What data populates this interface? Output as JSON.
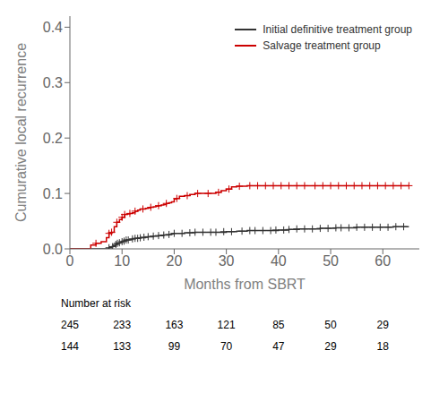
{
  "chart_data": {
    "type": "line",
    "line_style": "step",
    "xlabel": "Months from SBRT",
    "ylabel": "Cumurative local recurrence",
    "xlim": [
      0,
      67
    ],
    "ylim": [
      0,
      0.42
    ],
    "xticks": [
      0,
      10,
      20,
      30,
      40,
      50,
      60
    ],
    "yticks": [
      {
        "value": 0.0,
        "label": "0.0"
      },
      0.1,
      0.2,
      0.3,
      0.4
    ],
    "grid": false,
    "legend": "upper right",
    "series": [
      {
        "name": "Initial definitive treatment group",
        "color": "#333333",
        "marker": "+",
        "x": [
          0,
          7.2,
          7.5,
          8.0,
          8.3,
          8.8,
          9.0,
          9.2,
          9.5,
          9.8,
          10.0,
          10.3,
          10.5,
          10.8,
          11.0,
          11.5,
          12.0,
          12.5,
          13.0,
          13.5,
          14.0,
          14.5,
          15.0,
          15.5,
          16.0,
          16.5,
          17.0,
          17.5,
          18.0,
          18.5,
          19.0,
          19.5,
          20.0,
          20.5,
          21.0,
          22.0,
          23.0,
          24.0,
          25.0,
          26.0,
          27.0,
          28.0,
          29.0,
          30.0,
          31.0,
          32.0,
          33.0,
          34.0,
          35.0,
          36.0,
          37.0,
          38.0,
          39.0,
          40.0,
          41.0,
          42.0,
          43.0,
          44.0,
          45.0,
          46.0,
          47.0,
          48.0,
          49.0,
          50.0,
          51.0,
          52.0,
          53.0,
          54.0,
          55.0,
          56.0,
          57.0,
          58.0,
          59.0,
          60.0,
          61.0,
          62.0,
          63.0,
          64.0,
          65.0
        ],
        "values": [
          0,
          0,
          0.002,
          0.004,
          0.006,
          0.008,
          0.009,
          0.01,
          0.011,
          0.012,
          0.013,
          0.014,
          0.015,
          0.016,
          0.016,
          0.017,
          0.018,
          0.019,
          0.019,
          0.02,
          0.02,
          0.021,
          0.022,
          0.022,
          0.023,
          0.023,
          0.024,
          0.024,
          0.025,
          0.025,
          0.026,
          0.027,
          0.028,
          0.028,
          0.028,
          0.029,
          0.029,
          0.03,
          0.03,
          0.03,
          0.03,
          0.03,
          0.03,
          0.031,
          0.031,
          0.032,
          0.032,
          0.033,
          0.033,
          0.033,
          0.033,
          0.033,
          0.033,
          0.034,
          0.034,
          0.035,
          0.035,
          0.036,
          0.036,
          0.036,
          0.036,
          0.037,
          0.037,
          0.037,
          0.038,
          0.038,
          0.038,
          0.038,
          0.039,
          0.039,
          0.039,
          0.039,
          0.039,
          0.039,
          0.039,
          0.04,
          0.04,
          0.04,
          0.04
        ],
        "censored": {
          "x": [
            7.5,
            8.2,
            8.8,
            9.1,
            9.5,
            10.0,
            10.4,
            10.8,
            11.2,
            12.0,
            12.5,
            13.0,
            13.5,
            14.2,
            15.0,
            16.0,
            17.0,
            18.0,
            19.0,
            20.0,
            21.5,
            23.0,
            24.0,
            25.5,
            27.0,
            28.0,
            29.5,
            31.0,
            33.0,
            34.5,
            35.5,
            37.0,
            38.5,
            39.5,
            41.0,
            42.0,
            43.5,
            45.0,
            46.5,
            48.0,
            49.5,
            51.0,
            52.0,
            53.5,
            55.0,
            56.5,
            58.0,
            59.5,
            61.0,
            62.5,
            64.0
          ],
          "values": [
            0.002,
            0.004,
            0.008,
            0.01,
            0.011,
            0.013,
            0.014,
            0.016,
            0.016,
            0.018,
            0.019,
            0.019,
            0.02,
            0.021,
            0.022,
            0.023,
            0.024,
            0.025,
            0.026,
            0.028,
            0.028,
            0.029,
            0.03,
            0.03,
            0.03,
            0.03,
            0.031,
            0.031,
            0.032,
            0.033,
            0.033,
            0.033,
            0.033,
            0.034,
            0.034,
            0.035,
            0.036,
            0.036,
            0.036,
            0.037,
            0.037,
            0.038,
            0.038,
            0.038,
            0.039,
            0.039,
            0.039,
            0.039,
            0.039,
            0.04,
            0.04
          ]
        }
      },
      {
        "name": "Salvage treatment group",
        "color": "#cc0000",
        "marker": "+",
        "x": [
          0,
          4.0,
          5.0,
          6.0,
          7.0,
          7.5,
          8.0,
          8.5,
          9.0,
          9.5,
          10.0,
          10.5,
          11.0,
          11.5,
          12.0,
          12.5,
          13.0,
          13.5,
          14.0,
          14.5,
          15.0,
          15.5,
          16.0,
          16.5,
          17.0,
          17.5,
          18.0,
          18.5,
          19.0,
          19.5,
          20.0,
          20.5,
          21.0,
          22.0,
          23.0,
          24.0,
          25.0,
          26.0,
          27.0,
          28.0,
          29.0,
          30.0,
          31.0,
          32.0,
          33.0,
          34.0,
          35.0,
          36.0,
          37.0,
          38.0,
          39.0,
          40.0,
          41.0,
          42.0,
          43.0,
          44.0,
          45.0,
          46.0,
          47.0,
          48.0,
          49.0,
          50.0,
          51.0,
          52.0,
          53.0,
          54.0,
          55.0,
          56.0,
          57.0,
          58.0,
          59.0,
          60.0,
          61.0,
          62.0,
          63.0,
          64.0,
          65.0
        ],
        "values": [
          0,
          0.007,
          0.01,
          0.013,
          0.02,
          0.028,
          0.03,
          0.04,
          0.048,
          0.053,
          0.057,
          0.062,
          0.063,
          0.064,
          0.065,
          0.068,
          0.07,
          0.072,
          0.072,
          0.073,
          0.074,
          0.075,
          0.076,
          0.077,
          0.078,
          0.079,
          0.08,
          0.082,
          0.083,
          0.085,
          0.09,
          0.091,
          0.095,
          0.096,
          0.098,
          0.1,
          0.1,
          0.1,
          0.1,
          0.102,
          0.105,
          0.108,
          0.112,
          0.113,
          0.113,
          0.114,
          0.114,
          0.114,
          0.114,
          0.114,
          0.114,
          0.114,
          0.114,
          0.114,
          0.114,
          0.114,
          0.114,
          0.114,
          0.114,
          0.114,
          0.114,
          0.114,
          0.114,
          0.114,
          0.114,
          0.114,
          0.114,
          0.114,
          0.114,
          0.114,
          0.114,
          0.114,
          0.114,
          0.114,
          0.114,
          0.114,
          0.114
        ],
        "censored": {
          "x": [
            5.0,
            7.5,
            8.0,
            9.0,
            10.0,
            10.5,
            11.5,
            12.5,
            14.0,
            15.5,
            17.0,
            18.5,
            20.5,
            22.5,
            24.5,
            26.5,
            28.5,
            30.5,
            32.5,
            34.5,
            36.0,
            37.5,
            39.0,
            40.5,
            42.0,
            43.5,
            45.0,
            47.0,
            48.5,
            50.0,
            51.5,
            53.0,
            54.5,
            56.0,
            57.5,
            59.0,
            60.5,
            62.0,
            63.5,
            65.0
          ],
          "values": [
            0.01,
            0.028,
            0.03,
            0.048,
            0.057,
            0.062,
            0.064,
            0.068,
            0.072,
            0.075,
            0.078,
            0.082,
            0.091,
            0.096,
            0.1,
            0.1,
            0.102,
            0.108,
            0.113,
            0.114,
            0.114,
            0.114,
            0.114,
            0.114,
            0.114,
            0.114,
            0.114,
            0.114,
            0.114,
            0.114,
            0.114,
            0.114,
            0.114,
            0.114,
            0.114,
            0.114,
            0.114,
            0.114,
            0.114,
            0.114
          ]
        }
      }
    ],
    "number_at_risk": {
      "label": "Number at risk",
      "x": [
        0,
        10,
        20,
        30,
        40,
        50,
        60
      ],
      "rows": [
        [
          245,
          233,
          163,
          121,
          85,
          50,
          29
        ],
        [
          144,
          133,
          99,
          70,
          47,
          29,
          18
        ]
      ]
    }
  }
}
